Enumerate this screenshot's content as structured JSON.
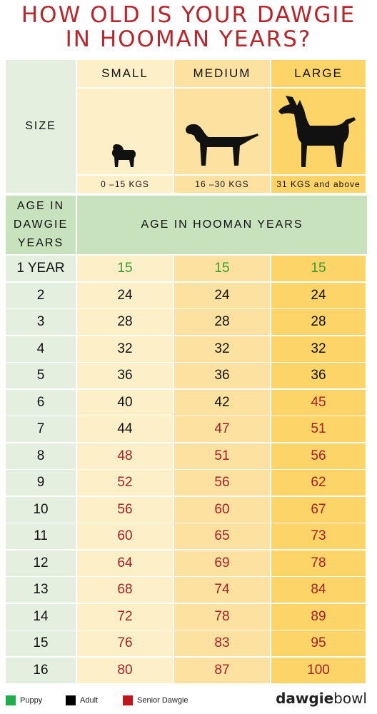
{
  "title_line1": "HOW OLD IS YOUR DAWGIE",
  "title_line2": "IN HOOMAN YEARS?",
  "size_label": "SIZE",
  "sizes": [
    {
      "name": "SMALL",
      "weight": "0 –15 KGS",
      "icon": "pug-icon"
    },
    {
      "name": "MEDIUM",
      "weight": "16 –30 KGS",
      "icon": "labrador-icon"
    },
    {
      "name": "LARGE",
      "weight": "31 KGS and above",
      "icon": "doberman-icon"
    }
  ],
  "age_dawgie_label": [
    "AGE IN",
    "DAWGIE",
    "YEARS"
  ],
  "age_hooman_label": "AGE IN HOOMAN YEARS",
  "rows": [
    {
      "age": "1 YEAR",
      "values": [
        "15",
        "15",
        "15"
      ],
      "stages": [
        "puppy",
        "puppy",
        "puppy"
      ]
    },
    {
      "age": "2",
      "values": [
        "24",
        "24",
        "24"
      ],
      "stages": [
        "adult",
        "adult",
        "adult"
      ]
    },
    {
      "age": "3",
      "values": [
        "28",
        "28",
        "28"
      ],
      "stages": [
        "adult",
        "adult",
        "adult"
      ]
    },
    {
      "age": "4",
      "values": [
        "32",
        "32",
        "32"
      ],
      "stages": [
        "adult",
        "adult",
        "adult"
      ]
    },
    {
      "age": "5",
      "values": [
        "36",
        "36",
        "36"
      ],
      "stages": [
        "adult",
        "adult",
        "adult"
      ]
    },
    {
      "age": "6",
      "values": [
        "40",
        "42",
        "45"
      ],
      "stages": [
        "adult",
        "adult",
        "senior"
      ]
    },
    {
      "age": "7",
      "values": [
        "44",
        "47",
        "51"
      ],
      "stages": [
        "adult",
        "senior",
        "senior"
      ]
    },
    {
      "age": "8",
      "values": [
        "48",
        "51",
        "56"
      ],
      "stages": [
        "senior",
        "senior",
        "senior"
      ]
    },
    {
      "age": "9",
      "values": [
        "52",
        "56",
        "62"
      ],
      "stages": [
        "senior",
        "senior",
        "senior"
      ]
    },
    {
      "age": "10",
      "values": [
        "56",
        "60",
        "67"
      ],
      "stages": [
        "senior",
        "senior",
        "senior"
      ]
    },
    {
      "age": "11",
      "values": [
        "60",
        "65",
        "73"
      ],
      "stages": [
        "senior",
        "senior",
        "senior"
      ]
    },
    {
      "age": "12",
      "values": [
        "64",
        "69",
        "78"
      ],
      "stages": [
        "senior",
        "senior",
        "senior"
      ]
    },
    {
      "age": "13",
      "values": [
        "68",
        "74",
        "84"
      ],
      "stages": [
        "senior",
        "senior",
        "senior"
      ]
    },
    {
      "age": "14",
      "values": [
        "72",
        "78",
        "89"
      ],
      "stages": [
        "senior",
        "senior",
        "senior"
      ]
    },
    {
      "age": "15",
      "values": [
        "76",
        "83",
        "95"
      ],
      "stages": [
        "senior",
        "senior",
        "senior"
      ]
    },
    {
      "age": "16",
      "values": [
        "80",
        "87",
        "100"
      ],
      "stages": [
        "senior",
        "senior",
        "senior"
      ]
    }
  ],
  "legend": [
    {
      "label": "Puppy",
      "color": "#1fad4e"
    },
    {
      "label": "Adult",
      "color": "#000000"
    },
    {
      "label": "Senior Dawgie",
      "color": "#c0151c"
    }
  ],
  "brand": {
    "part1": "dawgie",
    "part2": "bowl"
  },
  "colors": {
    "label_col": "#e4efdf",
    "small_col": "#fdefc8",
    "medium_col": "#fce1a0",
    "large_col": "#fcd468",
    "header_band": "#c7e2bd",
    "puppy": "#3c9a35",
    "adult": "#111111",
    "senior": "#a51f24"
  }
}
